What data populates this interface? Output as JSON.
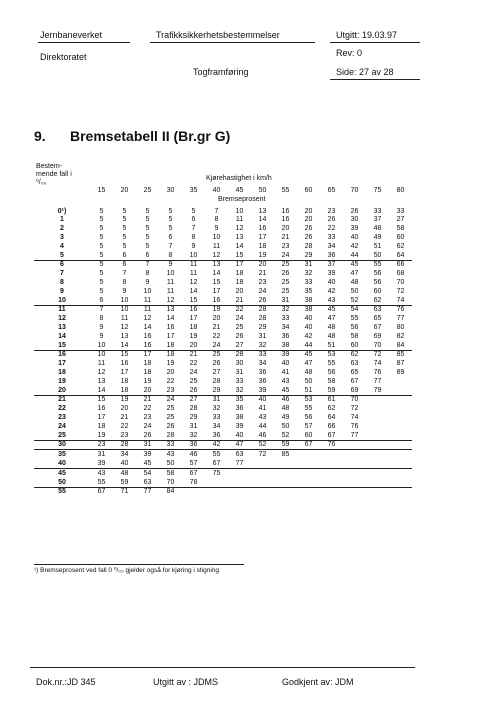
{
  "header": {
    "org": "Jernbaneverket",
    "dept": "Direktoratet",
    "doc_title": "Trafikksikkerhetsbestemmelser",
    "section": "Togframføring",
    "issued": "Utgitt: 19.03.97",
    "revision": "Rev: 0",
    "page": "Side: 27 av 28"
  },
  "section_number": "9.",
  "section_title": "Bremsetabell II (Br.gr G)",
  "table": {
    "row_header_line1": "Bestem-",
    "row_header_line2": "mende fall i",
    "row_header_line3": "⁰/₀₀",
    "speed_header": "Kjørehastighet i km/h",
    "speeds": [
      "15",
      "20",
      "25",
      "30",
      "35",
      "40",
      "45",
      "50",
      "55",
      "60",
      "65",
      "70",
      "75",
      "80"
    ],
    "brake_label": "Bremseprosent",
    "rows": [
      {
        "g": "0¹)",
        "v": [
          "5",
          "5",
          "5",
          "5",
          "5",
          "7",
          "10",
          "13",
          "16",
          "20",
          "23",
          "26",
          "33",
          "33"
        ]
      },
      {
        "g": "1",
        "v": [
          "5",
          "5",
          "5",
          "5",
          "6",
          "8",
          "11",
          "14",
          "16",
          "20",
          "26",
          "30",
          "37",
          "27"
        ]
      },
      {
        "g": "2",
        "v": [
          "5",
          "5",
          "5",
          "5",
          "7",
          "9",
          "12",
          "16",
          "20",
          "26",
          "22",
          "39",
          "48",
          "58"
        ]
      },
      {
        "g": "3",
        "v": [
          "5",
          "5",
          "5",
          "6",
          "8",
          "10",
          "13",
          "17",
          "21",
          "26",
          "33",
          "40",
          "49",
          "60"
        ]
      },
      {
        "g": "4",
        "v": [
          "5",
          "5",
          "5",
          "7",
          "9",
          "11",
          "14",
          "18",
          "23",
          "28",
          "34",
          "42",
          "51",
          "62"
        ]
      },
      {
        "g": "5",
        "v": [
          "5",
          "6",
          "6",
          "8",
          "10",
          "12",
          "15",
          "19",
          "24",
          "29",
          "36",
          "44",
          "50",
          "64"
        ]
      },
      {
        "g": "6",
        "v": [
          "5",
          "6",
          "7",
          "9",
          "11",
          "13",
          "17",
          "20",
          "25",
          "31",
          "37",
          "45",
          "55",
          "66"
        ]
      },
      {
        "g": "7",
        "v": [
          "5",
          "7",
          "8",
          "10",
          "11",
          "14",
          "18",
          "21",
          "26",
          "32",
          "39",
          "47",
          "56",
          "68"
        ]
      },
      {
        "g": "8",
        "v": [
          "5",
          "8",
          "9",
          "11",
          "12",
          "15",
          "18",
          "23",
          "25",
          "33",
          "40",
          "48",
          "56",
          "70"
        ]
      },
      {
        "g": "9",
        "v": [
          "5",
          "9",
          "10",
          "11",
          "14",
          "17",
          "20",
          "24",
          "25",
          "35",
          "42",
          "50",
          "60",
          "72"
        ]
      },
      {
        "g": "10",
        "v": [
          "6",
          "10",
          "11",
          "12",
          "15",
          "16",
          "21",
          "26",
          "31",
          "38",
          "43",
          "52",
          "62",
          "74"
        ]
      },
      {
        "g": "11",
        "v": [
          "7",
          "10",
          "11",
          "13",
          "16",
          "19",
          "22",
          "28",
          "32",
          "38",
          "45",
          "54",
          "63",
          "76"
        ]
      },
      {
        "g": "12",
        "v": [
          "8",
          "11",
          "12",
          "14",
          "17",
          "20",
          "24",
          "28",
          "33",
          "40",
          "47",
          "55",
          "65",
          "77"
        ]
      },
      {
        "g": "13",
        "v": [
          "9",
          "12",
          "14",
          "16",
          "18",
          "21",
          "25",
          "29",
          "34",
          "40",
          "48",
          "56",
          "67",
          "80"
        ]
      },
      {
        "g": "14",
        "v": [
          "9",
          "13",
          "16",
          "17",
          "19",
          "22",
          "26",
          "31",
          "36",
          "42",
          "48",
          "58",
          "69",
          "82"
        ]
      },
      {
        "g": "15",
        "v": [
          "10",
          "14",
          "16",
          "18",
          "20",
          "24",
          "27",
          "32",
          "38",
          "44",
          "51",
          "60",
          "70",
          "84"
        ]
      },
      {
        "g": "16",
        "v": [
          "10",
          "15",
          "17",
          "18",
          "21",
          "25",
          "28",
          "33",
          "39",
          "45",
          "53",
          "62",
          "72",
          "85"
        ]
      },
      {
        "g": "17",
        "v": [
          "11",
          "16",
          "18",
          "19",
          "22",
          "26",
          "30",
          "34",
          "40",
          "47",
          "55",
          "63",
          "74",
          "87"
        ]
      },
      {
        "g": "18",
        "v": [
          "12",
          "17",
          "18",
          "20",
          "24",
          "27",
          "31",
          "36",
          "41",
          "48",
          "56",
          "65",
          "76",
          "89"
        ]
      },
      {
        "g": "19",
        "v": [
          "13",
          "18",
          "19",
          "22",
          "25",
          "28",
          "33",
          "36",
          "43",
          "50",
          "58",
          "67",
          "77",
          ""
        ]
      },
      {
        "g": "20",
        "v": [
          "14",
          "18",
          "20",
          "23",
          "26",
          "29",
          "32",
          "39",
          "45",
          "51",
          "59",
          "69",
          "79",
          ""
        ]
      },
      {
        "g": "21",
        "v": [
          "15",
          "19",
          "21",
          "24",
          "27",
          "31",
          "35",
          "40",
          "46",
          "53",
          "61",
          "70",
          "",
          ""
        ]
      },
      {
        "g": "22",
        "v": [
          "16",
          "20",
          "22",
          "25",
          "28",
          "32",
          "36",
          "41",
          "48",
          "55",
          "62",
          "72",
          "",
          ""
        ]
      },
      {
        "g": "23",
        "v": [
          "17",
          "21",
          "23",
          "25",
          "29",
          "33",
          "38",
          "43",
          "49",
          "56",
          "64",
          "74",
          "",
          ""
        ]
      },
      {
        "g": "24",
        "v": [
          "18",
          "22",
          "24",
          "26",
          "31",
          "34",
          "39",
          "44",
          "50",
          "57",
          "66",
          "76",
          "",
          ""
        ]
      },
      {
        "g": "25",
        "v": [
          "19",
          "23",
          "26",
          "28",
          "32",
          "36",
          "40",
          "46",
          "52",
          "60",
          "67",
          "77",
          "",
          ""
        ]
      },
      {
        "g": "30",
        "v": [
          "23",
          "28",
          "31",
          "33",
          "36",
          "42",
          "47",
          "52",
          "59",
          "67",
          "76",
          "",
          "",
          ""
        ]
      },
      {
        "g": "35",
        "v": [
          "31",
          "34",
          "39",
          "43",
          "46",
          "55",
          "63",
          "72",
          "85",
          "",
          "",
          "",
          "",
          ""
        ]
      },
      {
        "g": "40",
        "v": [
          "39",
          "40",
          "45",
          "50",
          "57",
          "67",
          "77",
          "",
          "",
          "",
          "",
          "",
          "",
          ""
        ]
      },
      {
        "g": "45",
        "v": [
          "43",
          "48",
          "54",
          "58",
          "67",
          "75",
          "",
          "",
          "",
          "",
          "",
          "",
          "",
          ""
        ]
      },
      {
        "g": "50",
        "v": [
          "55",
          "59",
          "63",
          "70",
          "78",
          "",
          "",
          "",
          "",
          "",
          "",
          "",
          "",
          ""
        ]
      },
      {
        "g": "55",
        "v": [
          "67",
          "71",
          "77",
          "84",
          "",
          "",
          "",
          "",
          "",
          "",
          "",
          "",
          "",
          ""
        ]
      }
    ],
    "group_starts": [
      "6",
      "11",
      "16",
      "21",
      "26",
      "30",
      "35",
      "45",
      "55"
    ],
    "footnote": "¹) Bremseprosent ved fall 0 ⁰/₀₀ gjelder også for kjøring i stigning"
  },
  "footer": {
    "doc_no": "Dok.nr.:JD 345",
    "issued_by": "Utgitt av : JDMS",
    "approved_by": "Godkjent av: JDM"
  }
}
